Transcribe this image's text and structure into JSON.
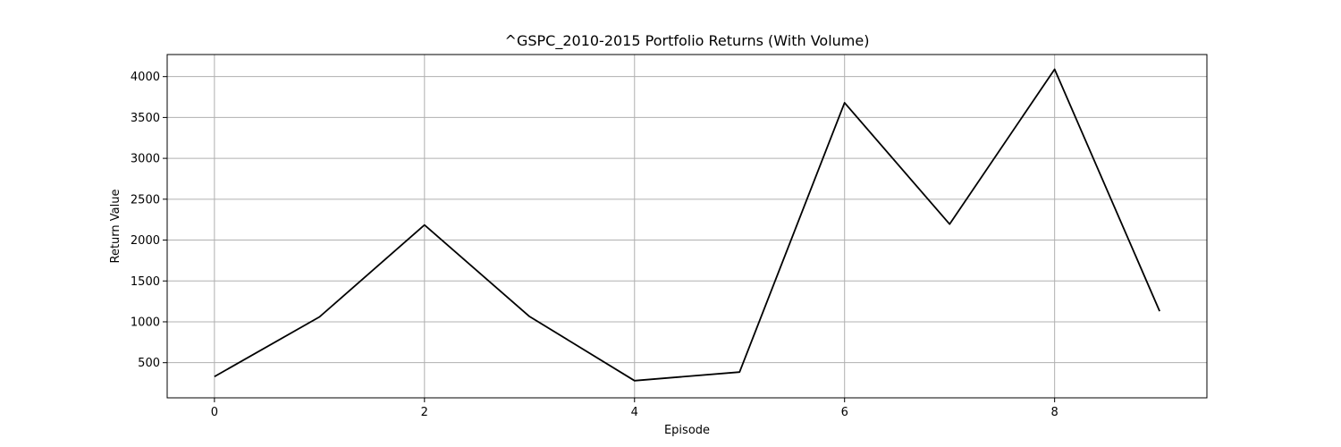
{
  "chart_data": {
    "type": "line",
    "title": "^GSPC_2010-2015 Portfolio Returns (With Volume)",
    "xlabel": "Episode",
    "ylabel": "Return Value",
    "x": [
      0,
      1,
      2,
      3,
      4,
      5,
      6,
      7,
      8,
      9
    ],
    "series": [
      {
        "values": [
          330,
          1060,
          2185,
          1065,
          280,
          385,
          3680,
          2195,
          4090,
          1130
        ],
        "color": "#000000"
      }
    ],
    "xlim": [
      -0.45,
      9.45
    ],
    "ylim": [
      70,
      4270
    ],
    "xticks": [
      0,
      2,
      4,
      6,
      8
    ],
    "yticks": [
      500,
      1000,
      1500,
      2000,
      2500,
      3000,
      3500,
      4000
    ],
    "grid": true,
    "legend": "none"
  }
}
